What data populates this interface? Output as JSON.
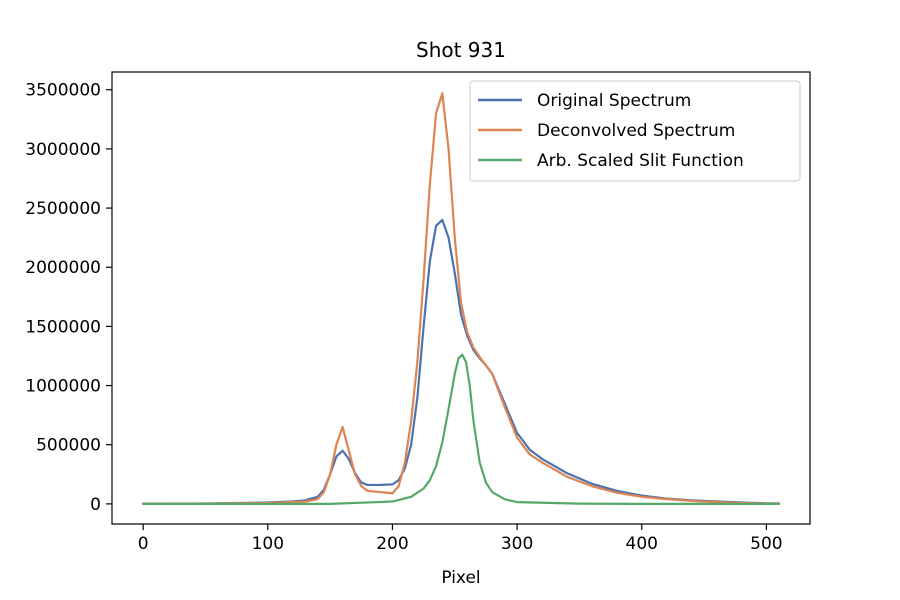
{
  "chart_data": {
    "type": "line",
    "title": "Shot 931",
    "xlabel": "Pixel",
    "ylabel": "",
    "xlim": [
      -25,
      535
    ],
    "ylim": [
      -170000,
      3650000
    ],
    "xticks": [
      0,
      100,
      200,
      300,
      400,
      500
    ],
    "yticks": [
      0,
      500000,
      1000000,
      1500000,
      2000000,
      2500000,
      3000000,
      3500000
    ],
    "grid": false,
    "legend_position": "top-right",
    "series": [
      {
        "name": "Original Spectrum",
        "color": "#4c72b0",
        "x": [
          0,
          50,
          100,
          120,
          130,
          140,
          145,
          150,
          155,
          160,
          165,
          170,
          175,
          180,
          190,
          200,
          205,
          210,
          215,
          220,
          225,
          230,
          235,
          240,
          245,
          250,
          255,
          260,
          265,
          270,
          275,
          280,
          290,
          300,
          310,
          320,
          340,
          360,
          380,
          400,
          420,
          440,
          460,
          480,
          500,
          510
        ],
        "y": [
          2000,
          3000,
          12000,
          20000,
          30000,
          60000,
          120000,
          250000,
          400000,
          450000,
          380000,
          260000,
          180000,
          160000,
          160000,
          165000,
          200000,
          300000,
          500000,
          900000,
          1500000,
          2050000,
          2350000,
          2400000,
          2250000,
          1950000,
          1600000,
          1420000,
          1300000,
          1230000,
          1170000,
          1100000,
          850000,
          600000,
          460000,
          380000,
          260000,
          170000,
          110000,
          70000,
          45000,
          30000,
          20000,
          12000,
          5000,
          4000
        ]
      },
      {
        "name": "Deconvolved Spectrum",
        "color": "#dd8452",
        "x": [
          0,
          50,
          100,
          120,
          130,
          140,
          145,
          150,
          155,
          160,
          165,
          170,
          175,
          180,
          190,
          200,
          205,
          210,
          215,
          220,
          225,
          230,
          235,
          240,
          245,
          250,
          255,
          260,
          265,
          270,
          275,
          280,
          290,
          300,
          310,
          320,
          340,
          360,
          380,
          400,
          420,
          440,
          460,
          480,
          500,
          510
        ],
        "y": [
          1000,
          2000,
          8000,
          15000,
          20000,
          40000,
          100000,
          250000,
          500000,
          650000,
          450000,
          250000,
          150000,
          110000,
          100000,
          90000,
          150000,
          350000,
          700000,
          1200000,
          1900000,
          2700000,
          3300000,
          3470000,
          3000000,
          2250000,
          1700000,
          1450000,
          1320000,
          1240000,
          1170000,
          1100000,
          820000,
          560000,
          420000,
          350000,
          230000,
          150000,
          95000,
          60000,
          40000,
          25000,
          15000,
          8000,
          3000,
          2000
        ]
      },
      {
        "name": "Arb. Scaled Slit Function",
        "color": "#55a868",
        "x": [
          0,
          100,
          150,
          200,
          215,
          225,
          230,
          235,
          240,
          245,
          250,
          253,
          256,
          259,
          262,
          265,
          270,
          275,
          280,
          290,
          300,
          350,
          400,
          450,
          510
        ],
        "y": [
          0,
          0,
          0,
          20000,
          60000,
          130000,
          200000,
          320000,
          520000,
          800000,
          1100000,
          1230000,
          1260000,
          1200000,
          1000000,
          700000,
          350000,
          180000,
          100000,
          40000,
          15000,
          2000,
          0,
          0,
          0
        ]
      }
    ]
  }
}
